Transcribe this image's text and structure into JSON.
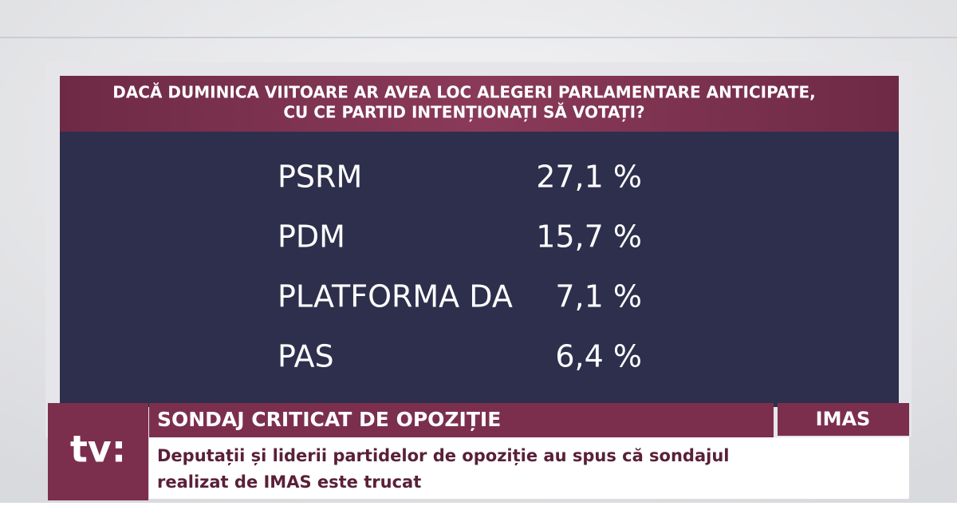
{
  "poll": {
    "question": [
      "DACĂ DUMINICA VIITOARE AR AVEA LOC ALEGERI PARLAMENTARE ANTICIPATE,",
      "CU CE PARTID INTENȚIONAȚI SĂ VOTAȚI?"
    ],
    "rows": [
      [
        "PSRM",
        "27,1 %"
      ],
      [
        "PDM",
        "15,7 %"
      ],
      [
        "PLATFORMA DA",
        "7,1 %"
      ],
      [
        "PAS",
        "6,4 %"
      ]
    ]
  },
  "lower_third": {
    "logo": "tv:",
    "headline": "SONDAJ CRITICAT DE OPOZIȚIE",
    "source": "IMAS",
    "caption": [
      "Deputații și liderii partidelor de opoziție au spus că sondajul",
      "realizat de IMAS este trucat"
    ]
  }
}
